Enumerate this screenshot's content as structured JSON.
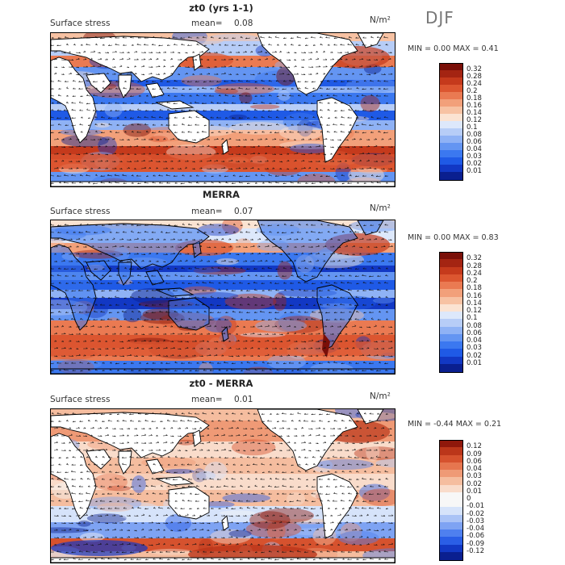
{
  "season": "DJF",
  "palette_pos": [
    "#0a1f8f",
    "#1238c4",
    "#1f5ae6",
    "#3b78f0",
    "#6495f2",
    "#8fb2f5",
    "#b7cdf7",
    "#dde8fb",
    "#fbe3d2",
    "#f7c2a3",
    "#f2a07a",
    "#ea7a52",
    "#dc5630",
    "#c53a1c",
    "#a42412",
    "#7a0f08"
  ],
  "panels": [
    {
      "title": "zt0 (yrs 1-1)",
      "subtitle": "Surface stress",
      "mean_label": "mean=",
      "mean_value": "0.08",
      "units": "N/m²",
      "min_max": "MIN =    0.00 MAX =    0.41",
      "colorbar_labels": [
        "0.32",
        "0.28",
        "0.24",
        "0.2",
        "0.18",
        "0.16",
        "0.14",
        "0.12",
        "0.1",
        "0.08",
        "0.06",
        "0.04",
        "0.03",
        "0.02",
        "0.01"
      ],
      "map_style": "model"
    },
    {
      "title": "MERRA",
      "subtitle": "Surface stress",
      "mean_label": "mean=",
      "mean_value": "0.07",
      "units": "N/m²",
      "min_max": "MIN =    0.00 MAX =    0.83",
      "colorbar_labels": [
        "0.32",
        "0.28",
        "0.24",
        "0.2",
        "0.18",
        "0.16",
        "0.14",
        "0.12",
        "0.1",
        "0.08",
        "0.06",
        "0.04",
        "0.03",
        "0.02",
        "0.01"
      ],
      "map_style": "obs"
    },
    {
      "title": "zt0 - MERRA",
      "subtitle": "Surface stress",
      "mean_label": "mean=",
      "mean_value": "0.01",
      "units": "N/m²",
      "min_max": "MIN =  -0.44 MAX =    0.21",
      "colorbar_labels": [
        "0.12",
        "0.09",
        "0.06",
        "0.04",
        "0.03",
        "0.02",
        "0.01",
        "0",
        "-0.01",
        "-0.02",
        "-0.03",
        "-0.04",
        "-0.06",
        "-0.09",
        "-0.12"
      ],
      "map_style": "diff"
    }
  ]
}
